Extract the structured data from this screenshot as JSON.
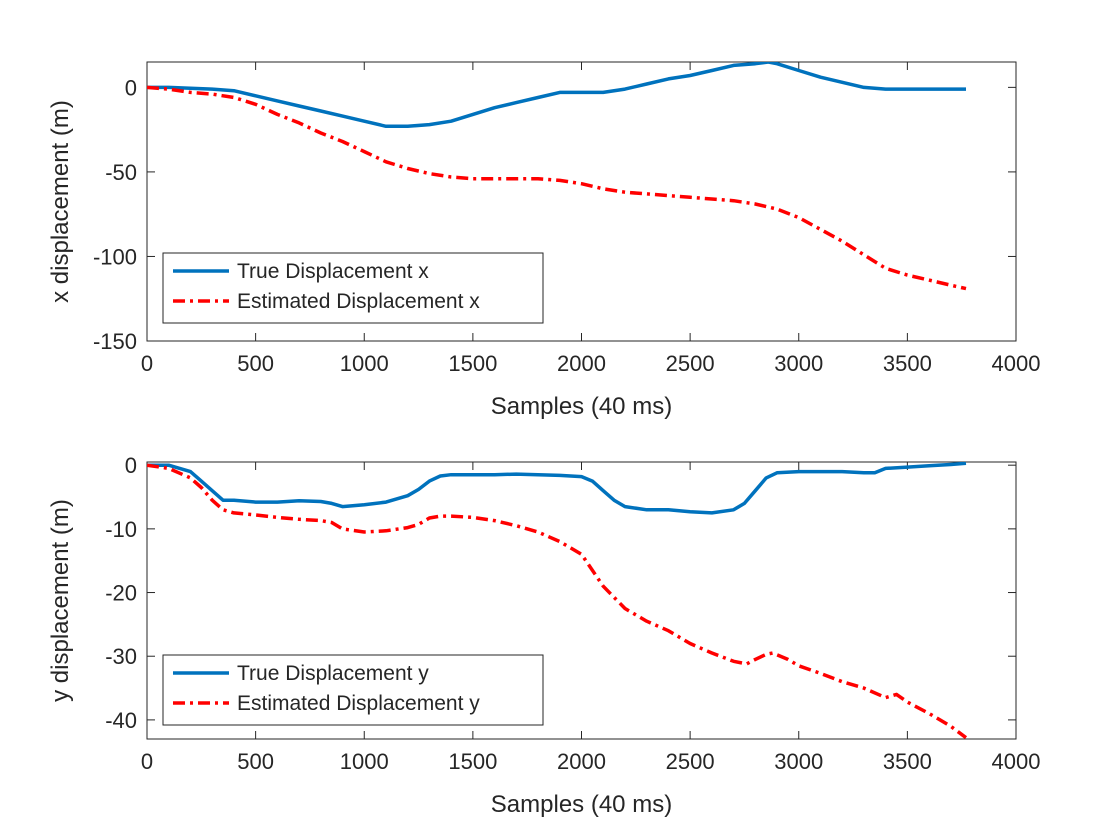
{
  "chart_data": [
    {
      "type": "line",
      "xlabel": "Samples (40 ms)",
      "ylabel": "x displacement (m)",
      "xlim": [
        0,
        4000
      ],
      "ylim": [
        -150,
        15
      ],
      "xticks": [
        0,
        500,
        1000,
        1500,
        2000,
        2500,
        3000,
        3500,
        4000
      ],
      "yticks": [
        0,
        -50,
        -100,
        -150
      ],
      "grid": false,
      "legend_position": "bottom-left",
      "series": [
        {
          "name": "True Displacement x",
          "color": "#0072BD",
          "style": "solid",
          "x": [
            0,
            100,
            200,
            300,
            400,
            500,
            600,
            700,
            800,
            900,
            1000,
            1100,
            1200,
            1300,
            1400,
            1500,
            1600,
            1700,
            1800,
            1900,
            2000,
            2100,
            2200,
            2300,
            2400,
            2500,
            2600,
            2700,
            2800,
            2860,
            2900,
            3000,
            3100,
            3200,
            3300,
            3400,
            3500,
            3600,
            3700,
            3770
          ],
          "y": [
            0,
            0,
            -0.5,
            -1,
            -2,
            -5,
            -8,
            -11,
            -14,
            -17,
            -20,
            -23,
            -23,
            -22,
            -20,
            -16,
            -12,
            -9,
            -6,
            -3,
            -3,
            -3,
            -1,
            2,
            5,
            7,
            10,
            13,
            14,
            15,
            14,
            10,
            6,
            3,
            0,
            -1,
            -1,
            -1,
            -1,
            -1
          ]
        },
        {
          "name": "Estimated Displacement x",
          "color": "#FF0000",
          "style": "dash-dot",
          "x": [
            0,
            100,
            200,
            300,
            400,
            500,
            600,
            700,
            800,
            900,
            1000,
            1100,
            1200,
            1300,
            1400,
            1500,
            1600,
            1700,
            1800,
            1900,
            2000,
            2100,
            2200,
            2300,
            2400,
            2500,
            2600,
            2700,
            2800,
            2900,
            3000,
            3100,
            3200,
            3300,
            3400,
            3500,
            3600,
            3700,
            3770
          ],
          "y": [
            0,
            -1,
            -3,
            -4,
            -6,
            -10,
            -16,
            -21,
            -27,
            -32,
            -38,
            -44,
            -48,
            -51,
            -53,
            -54,
            -54,
            -54,
            -54,
            -55,
            -57,
            -60,
            -62,
            -63,
            -64,
            -65,
            -66,
            -67,
            -69,
            -72,
            -77,
            -84,
            -91,
            -99,
            -107,
            -111,
            -114,
            -117,
            -119
          ]
        }
      ]
    },
    {
      "type": "line",
      "xlabel": "Samples (40 ms)",
      "ylabel": "y displacement (m)",
      "xlim": [
        0,
        4000
      ],
      "ylim": [
        -43,
        0.5
      ],
      "xticks": [
        0,
        500,
        1000,
        1500,
        2000,
        2500,
        3000,
        3500,
        4000
      ],
      "yticks": [
        0,
        -10,
        -20,
        -30,
        -40
      ],
      "grid": false,
      "legend_position": "bottom-left",
      "series": [
        {
          "name": "True Displacement y",
          "color": "#0072BD",
          "style": "solid",
          "x": [
            0,
            100,
            200,
            250,
            300,
            350,
            400,
            500,
            600,
            700,
            800,
            850,
            900,
            1000,
            1100,
            1200,
            1250,
            1300,
            1350,
            1400,
            1500,
            1600,
            1700,
            1800,
            1900,
            2000,
            2050,
            2100,
            2150,
            2200,
            2300,
            2400,
            2500,
            2600,
            2700,
            2750,
            2800,
            2850,
            2900,
            3000,
            3100,
            3200,
            3300,
            3350,
            3400,
            3500,
            3600,
            3700,
            3770
          ],
          "y": [
            0,
            0,
            -1,
            -2.5,
            -4,
            -5.5,
            -5.5,
            -5.8,
            -5.8,
            -5.6,
            -5.7,
            -6,
            -6.5,
            -6.2,
            -5.8,
            -4.8,
            -3.8,
            -2.5,
            -1.7,
            -1.5,
            -1.5,
            -1.5,
            -1.4,
            -1.5,
            -1.6,
            -1.8,
            -2.5,
            -4,
            -5.5,
            -6.5,
            -7,
            -7,
            -7.3,
            -7.5,
            -7,
            -6,
            -4,
            -2,
            -1.2,
            -1,
            -1,
            -1,
            -1.2,
            -1.2,
            -0.5,
            -0.3,
            -0.1,
            0.1,
            0.3
          ]
        },
        {
          "name": "Estimated Displacement y",
          "color": "#FF0000",
          "style": "dash-dot",
          "x": [
            0,
            100,
            200,
            250,
            300,
            350,
            400,
            500,
            600,
            700,
            800,
            850,
            900,
            1000,
            1100,
            1200,
            1250,
            1300,
            1350,
            1400,
            1500,
            1600,
            1700,
            1800,
            1900,
            2000,
            2100,
            2200,
            2300,
            2400,
            2500,
            2600,
            2700,
            2760,
            2800,
            2850,
            2880,
            2950,
            3000,
            3100,
            3200,
            3300,
            3400,
            3450,
            3500,
            3600,
            3700,
            3770
          ],
          "y": [
            0,
            -0.5,
            -2,
            -3.5,
            -5.5,
            -7,
            -7.5,
            -7.8,
            -8.2,
            -8.5,
            -8.7,
            -9,
            -10,
            -10.5,
            -10.3,
            -9.8,
            -9.3,
            -8.3,
            -8,
            -8,
            -8.2,
            -8.7,
            -9.5,
            -10.5,
            -12,
            -14,
            -19,
            -22.5,
            -24.5,
            -26,
            -28,
            -29.5,
            -30.8,
            -31.2,
            -30.5,
            -29.7,
            -29.5,
            -30.5,
            -31.5,
            -32.7,
            -34,
            -35,
            -36.5,
            -36,
            -37.2,
            -39,
            -41,
            -42.8
          ]
        }
      ]
    }
  ]
}
